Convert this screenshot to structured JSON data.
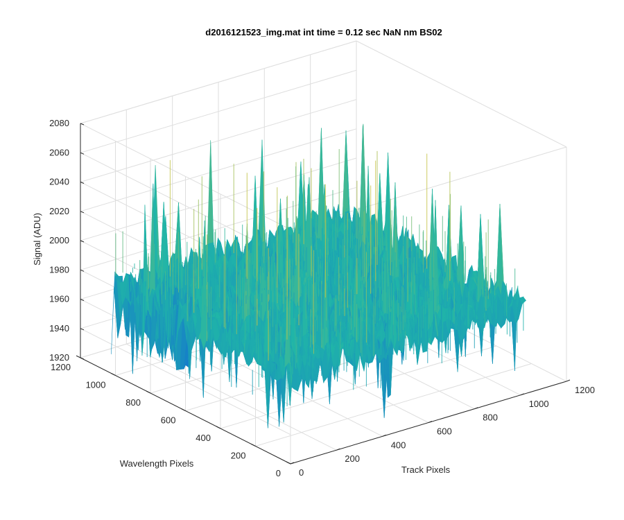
{
  "chart_data": {
    "type": "surface",
    "title": "d2016121523_img.mat int time = 0.12 sec  NaN nm BS02",
    "xlabel": "Track Pixels",
    "ylabel": "Wavelength Pixels",
    "zlabel": "Signal (ADU)",
    "xlim": [
      0,
      1200
    ],
    "ylim": [
      0,
      1200
    ],
    "zlim": [
      1920,
      2080
    ],
    "x_ticks": [
      "0",
      "200",
      "400",
      "600",
      "800",
      "1000",
      "1200"
    ],
    "y_ticks": [
      "0",
      "200",
      "400",
      "600",
      "800",
      "1000",
      "1200"
    ],
    "z_ticks": [
      "1920",
      "1940",
      "1960",
      "1980",
      "2000",
      "2020",
      "2040",
      "2060",
      "2080"
    ],
    "surface_extent": {
      "x": [
        0,
        1024
      ],
      "y": [
        0,
        1024
      ]
    },
    "surface_mean": 1980,
    "surface_range": [
      1923,
      2068
    ],
    "colormap": "parula",
    "colors": {
      "low": "#0f5cdd",
      "mid": "#20b5a8",
      "high": "#d9c53a"
    },
    "grid": true,
    "box": true
  }
}
